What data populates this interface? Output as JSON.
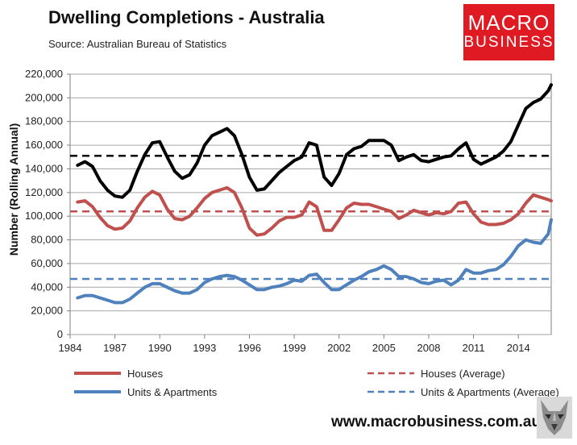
{
  "header": {
    "title": "Dwelling Completions - Australia",
    "source": "Source: Australian Bureau of Statistics"
  },
  "logo": {
    "line1": "MACRO",
    "line2": "BUSINESS"
  },
  "footer": {
    "url": "www.macrobusiness.com.au"
  },
  "colors": {
    "total": "#000000",
    "houses": "#c0504d",
    "units": "#4f81bd",
    "brand": "#e01a22"
  },
  "chart_data": {
    "type": "line",
    "title": "Dwelling Completions - Australia",
    "xlabel": "",
    "ylabel": "Number (Rolling Annual)",
    "xlim": [
      1984,
      2016.2
    ],
    "ylim": [
      0,
      220000
    ],
    "x_ticks": [
      "1984",
      "1987",
      "1990",
      "1993",
      "1996",
      "1999",
      "2002",
      "2005",
      "2008",
      "2011",
      "2014"
    ],
    "y_ticks": [
      "0",
      "20,000",
      "40,000",
      "60,000",
      "80,000",
      "100,000",
      "120,000",
      "140,000",
      "160,000",
      "180,000",
      "200,000",
      "220,000"
    ],
    "legend": [
      {
        "label": "Houses",
        "series": "houses",
        "style": "solid"
      },
      {
        "label": "Houses (Average)",
        "series": "houses_avg",
        "style": "dashed"
      },
      {
        "label": "Units & Apartments",
        "series": "units",
        "style": "solid"
      },
      {
        "label": "Units & Apartments (Average)",
        "series": "units_avg",
        "style": "dashed"
      }
    ],
    "series": [
      {
        "name": "Total",
        "key": "total",
        "style": "solid",
        "points": [
          [
            1984.5,
            143000
          ],
          [
            1985.0,
            146000
          ],
          [
            1985.5,
            142000
          ],
          [
            1986.0,
            130000
          ],
          [
            1986.5,
            122000
          ],
          [
            1987.0,
            117000
          ],
          [
            1987.5,
            116000
          ],
          [
            1988.0,
            122000
          ],
          [
            1988.5,
            138000
          ],
          [
            1989.0,
            152000
          ],
          [
            1989.5,
            162000
          ],
          [
            1990.0,
            163000
          ],
          [
            1990.5,
            150000
          ],
          [
            1991.0,
            138000
          ],
          [
            1991.5,
            132000
          ],
          [
            1992.0,
            135000
          ],
          [
            1992.5,
            145000
          ],
          [
            1993.0,
            160000
          ],
          [
            1993.5,
            168000
          ],
          [
            1994.0,
            171000
          ],
          [
            1994.5,
            174000
          ],
          [
            1995.0,
            168000
          ],
          [
            1995.5,
            152000
          ],
          [
            1996.0,
            133000
          ],
          [
            1996.5,
            122000
          ],
          [
            1997.0,
            123000
          ],
          [
            1997.5,
            130000
          ],
          [
            1998.0,
            137000
          ],
          [
            1998.5,
            142000
          ],
          [
            1999.0,
            147000
          ],
          [
            1999.5,
            150000
          ],
          [
            2000.0,
            162000
          ],
          [
            2000.5,
            160000
          ],
          [
            2001.0,
            133000
          ],
          [
            2001.5,
            126000
          ],
          [
            2002.0,
            136000
          ],
          [
            2002.5,
            152000
          ],
          [
            2003.0,
            157000
          ],
          [
            2003.5,
            159000
          ],
          [
            2004.0,
            164000
          ],
          [
            2004.5,
            164000
          ],
          [
            2005.0,
            164000
          ],
          [
            2005.5,
            160000
          ],
          [
            2006.0,
            147000
          ],
          [
            2006.5,
            150000
          ],
          [
            2007.0,
            152000
          ],
          [
            2007.5,
            147000
          ],
          [
            2008.0,
            146000
          ],
          [
            2008.5,
            148000
          ],
          [
            2009.0,
            150000
          ],
          [
            2009.5,
            151000
          ],
          [
            2010.0,
            157000
          ],
          [
            2010.5,
            162000
          ],
          [
            2011.0,
            148000
          ],
          [
            2011.5,
            144000
          ],
          [
            2012.0,
            147000
          ],
          [
            2012.5,
            150000
          ],
          [
            2013.0,
            155000
          ],
          [
            2013.5,
            163000
          ],
          [
            2014.0,
            177000
          ],
          [
            2014.5,
            191000
          ],
          [
            2015.0,
            196000
          ],
          [
            2015.5,
            199000
          ],
          [
            2016.0,
            206000
          ],
          [
            2016.2,
            211000
          ]
        ]
      },
      {
        "name": "Total (Average)",
        "key": "total_avg",
        "style": "dashed",
        "points": [
          [
            1984,
            151000
          ],
          [
            2016.2,
            151000
          ]
        ]
      },
      {
        "name": "Houses",
        "key": "houses",
        "style": "solid",
        "points": [
          [
            1984.5,
            112000
          ],
          [
            1985.0,
            113000
          ],
          [
            1985.5,
            108000
          ],
          [
            1986.0,
            99000
          ],
          [
            1986.5,
            92000
          ],
          [
            1987.0,
            89000
          ],
          [
            1987.5,
            90000
          ],
          [
            1988.0,
            96000
          ],
          [
            1988.5,
            107000
          ],
          [
            1989.0,
            116000
          ],
          [
            1989.5,
            121000
          ],
          [
            1990.0,
            118000
          ],
          [
            1990.5,
            106000
          ],
          [
            1991.0,
            98000
          ],
          [
            1991.5,
            97000
          ],
          [
            1992.0,
            100000
          ],
          [
            1992.5,
            107000
          ],
          [
            1993.0,
            115000
          ],
          [
            1993.5,
            120000
          ],
          [
            1994.0,
            122000
          ],
          [
            1994.5,
            124000
          ],
          [
            1995.0,
            120000
          ],
          [
            1995.5,
            107000
          ],
          [
            1996.0,
            90000
          ],
          [
            1996.5,
            84000
          ],
          [
            1997.0,
            85000
          ],
          [
            1997.5,
            90000
          ],
          [
            1998.0,
            96000
          ],
          [
            1998.5,
            99000
          ],
          [
            1999.0,
            99000
          ],
          [
            1999.5,
            101000
          ],
          [
            2000.0,
            112000
          ],
          [
            2000.5,
            108000
          ],
          [
            2001.0,
            88000
          ],
          [
            2001.5,
            88000
          ],
          [
            2002.0,
            97000
          ],
          [
            2002.5,
            107000
          ],
          [
            2003.0,
            111000
          ],
          [
            2003.5,
            110000
          ],
          [
            2004.0,
            110000
          ],
          [
            2004.5,
            108000
          ],
          [
            2005.0,
            106000
          ],
          [
            2005.5,
            104000
          ],
          [
            2006.0,
            98000
          ],
          [
            2006.5,
            101000
          ],
          [
            2007.0,
            105000
          ],
          [
            2007.5,
            103000
          ],
          [
            2008.0,
            101000
          ],
          [
            2008.5,
            103000
          ],
          [
            2009.0,
            102000
          ],
          [
            2009.5,
            104000
          ],
          [
            2010.0,
            111000
          ],
          [
            2010.5,
            112000
          ],
          [
            2011.0,
            102000
          ],
          [
            2011.5,
            95000
          ],
          [
            2012.0,
            93000
          ],
          [
            2012.5,
            93000
          ],
          [
            2013.0,
            94000
          ],
          [
            2013.5,
            97000
          ],
          [
            2014.0,
            102000
          ],
          [
            2014.5,
            111000
          ],
          [
            2015.0,
            118000
          ],
          [
            2015.5,
            116000
          ],
          [
            2016.0,
            114000
          ],
          [
            2016.2,
            113000
          ]
        ]
      },
      {
        "name": "Houses (Average)",
        "key": "houses_avg",
        "style": "dashed",
        "points": [
          [
            1984,
            104000
          ],
          [
            2016.2,
            104000
          ]
        ]
      },
      {
        "name": "Units & Apartments",
        "key": "units",
        "style": "solid",
        "points": [
          [
            1984.5,
            31000
          ],
          [
            1985.0,
            33000
          ],
          [
            1985.5,
            33000
          ],
          [
            1986.0,
            31000
          ],
          [
            1986.5,
            29000
          ],
          [
            1987.0,
            27000
          ],
          [
            1987.5,
            27000
          ],
          [
            1988.0,
            30000
          ],
          [
            1988.5,
            35000
          ],
          [
            1989.0,
            40000
          ],
          [
            1989.5,
            43000
          ],
          [
            1990.0,
            43000
          ],
          [
            1990.5,
            40000
          ],
          [
            1991.0,
            37000
          ],
          [
            1991.5,
            35000
          ],
          [
            1992.0,
            35000
          ],
          [
            1992.5,
            38000
          ],
          [
            1993.0,
            44000
          ],
          [
            1993.5,
            47000
          ],
          [
            1994.0,
            49000
          ],
          [
            1994.5,
            50000
          ],
          [
            1995.0,
            49000
          ],
          [
            1995.5,
            46000
          ],
          [
            1996.0,
            42000
          ],
          [
            1996.5,
            38000
          ],
          [
            1997.0,
            38000
          ],
          [
            1997.5,
            40000
          ],
          [
            1998.0,
            41000
          ],
          [
            1998.5,
            43000
          ],
          [
            1999.0,
            46000
          ],
          [
            1999.5,
            45000
          ],
          [
            2000.0,
            50000
          ],
          [
            2000.5,
            51000
          ],
          [
            2001.0,
            44000
          ],
          [
            2001.5,
            38000
          ],
          [
            2002.0,
            38000
          ],
          [
            2002.5,
            42000
          ],
          [
            2003.0,
            46000
          ],
          [
            2003.5,
            49000
          ],
          [
            2004.0,
            53000
          ],
          [
            2004.5,
            55000
          ],
          [
            2005.0,
            58000
          ],
          [
            2005.5,
            55000
          ],
          [
            2006.0,
            49000
          ],
          [
            2006.5,
            49000
          ],
          [
            2007.0,
            47000
          ],
          [
            2007.5,
            44000
          ],
          [
            2008.0,
            43000
          ],
          [
            2008.5,
            45000
          ],
          [
            2009.0,
            46000
          ],
          [
            2009.5,
            42000
          ],
          [
            2010.0,
            46000
          ],
          [
            2010.5,
            55000
          ],
          [
            2011.0,
            52000
          ],
          [
            2011.5,
            52000
          ],
          [
            2012.0,
            54000
          ],
          [
            2012.5,
            55000
          ],
          [
            2013.0,
            59000
          ],
          [
            2013.5,
            66000
          ],
          [
            2014.0,
            75000
          ],
          [
            2014.5,
            80000
          ],
          [
            2015.0,
            78000
          ],
          [
            2015.5,
            77000
          ],
          [
            2016.0,
            85000
          ],
          [
            2016.2,
            97000
          ]
        ]
      },
      {
        "name": "Units & Apartments (Average)",
        "key": "units_avg",
        "style": "dashed",
        "points": [
          [
            1984,
            47000
          ],
          [
            2016.2,
            47000
          ]
        ]
      }
    ]
  }
}
